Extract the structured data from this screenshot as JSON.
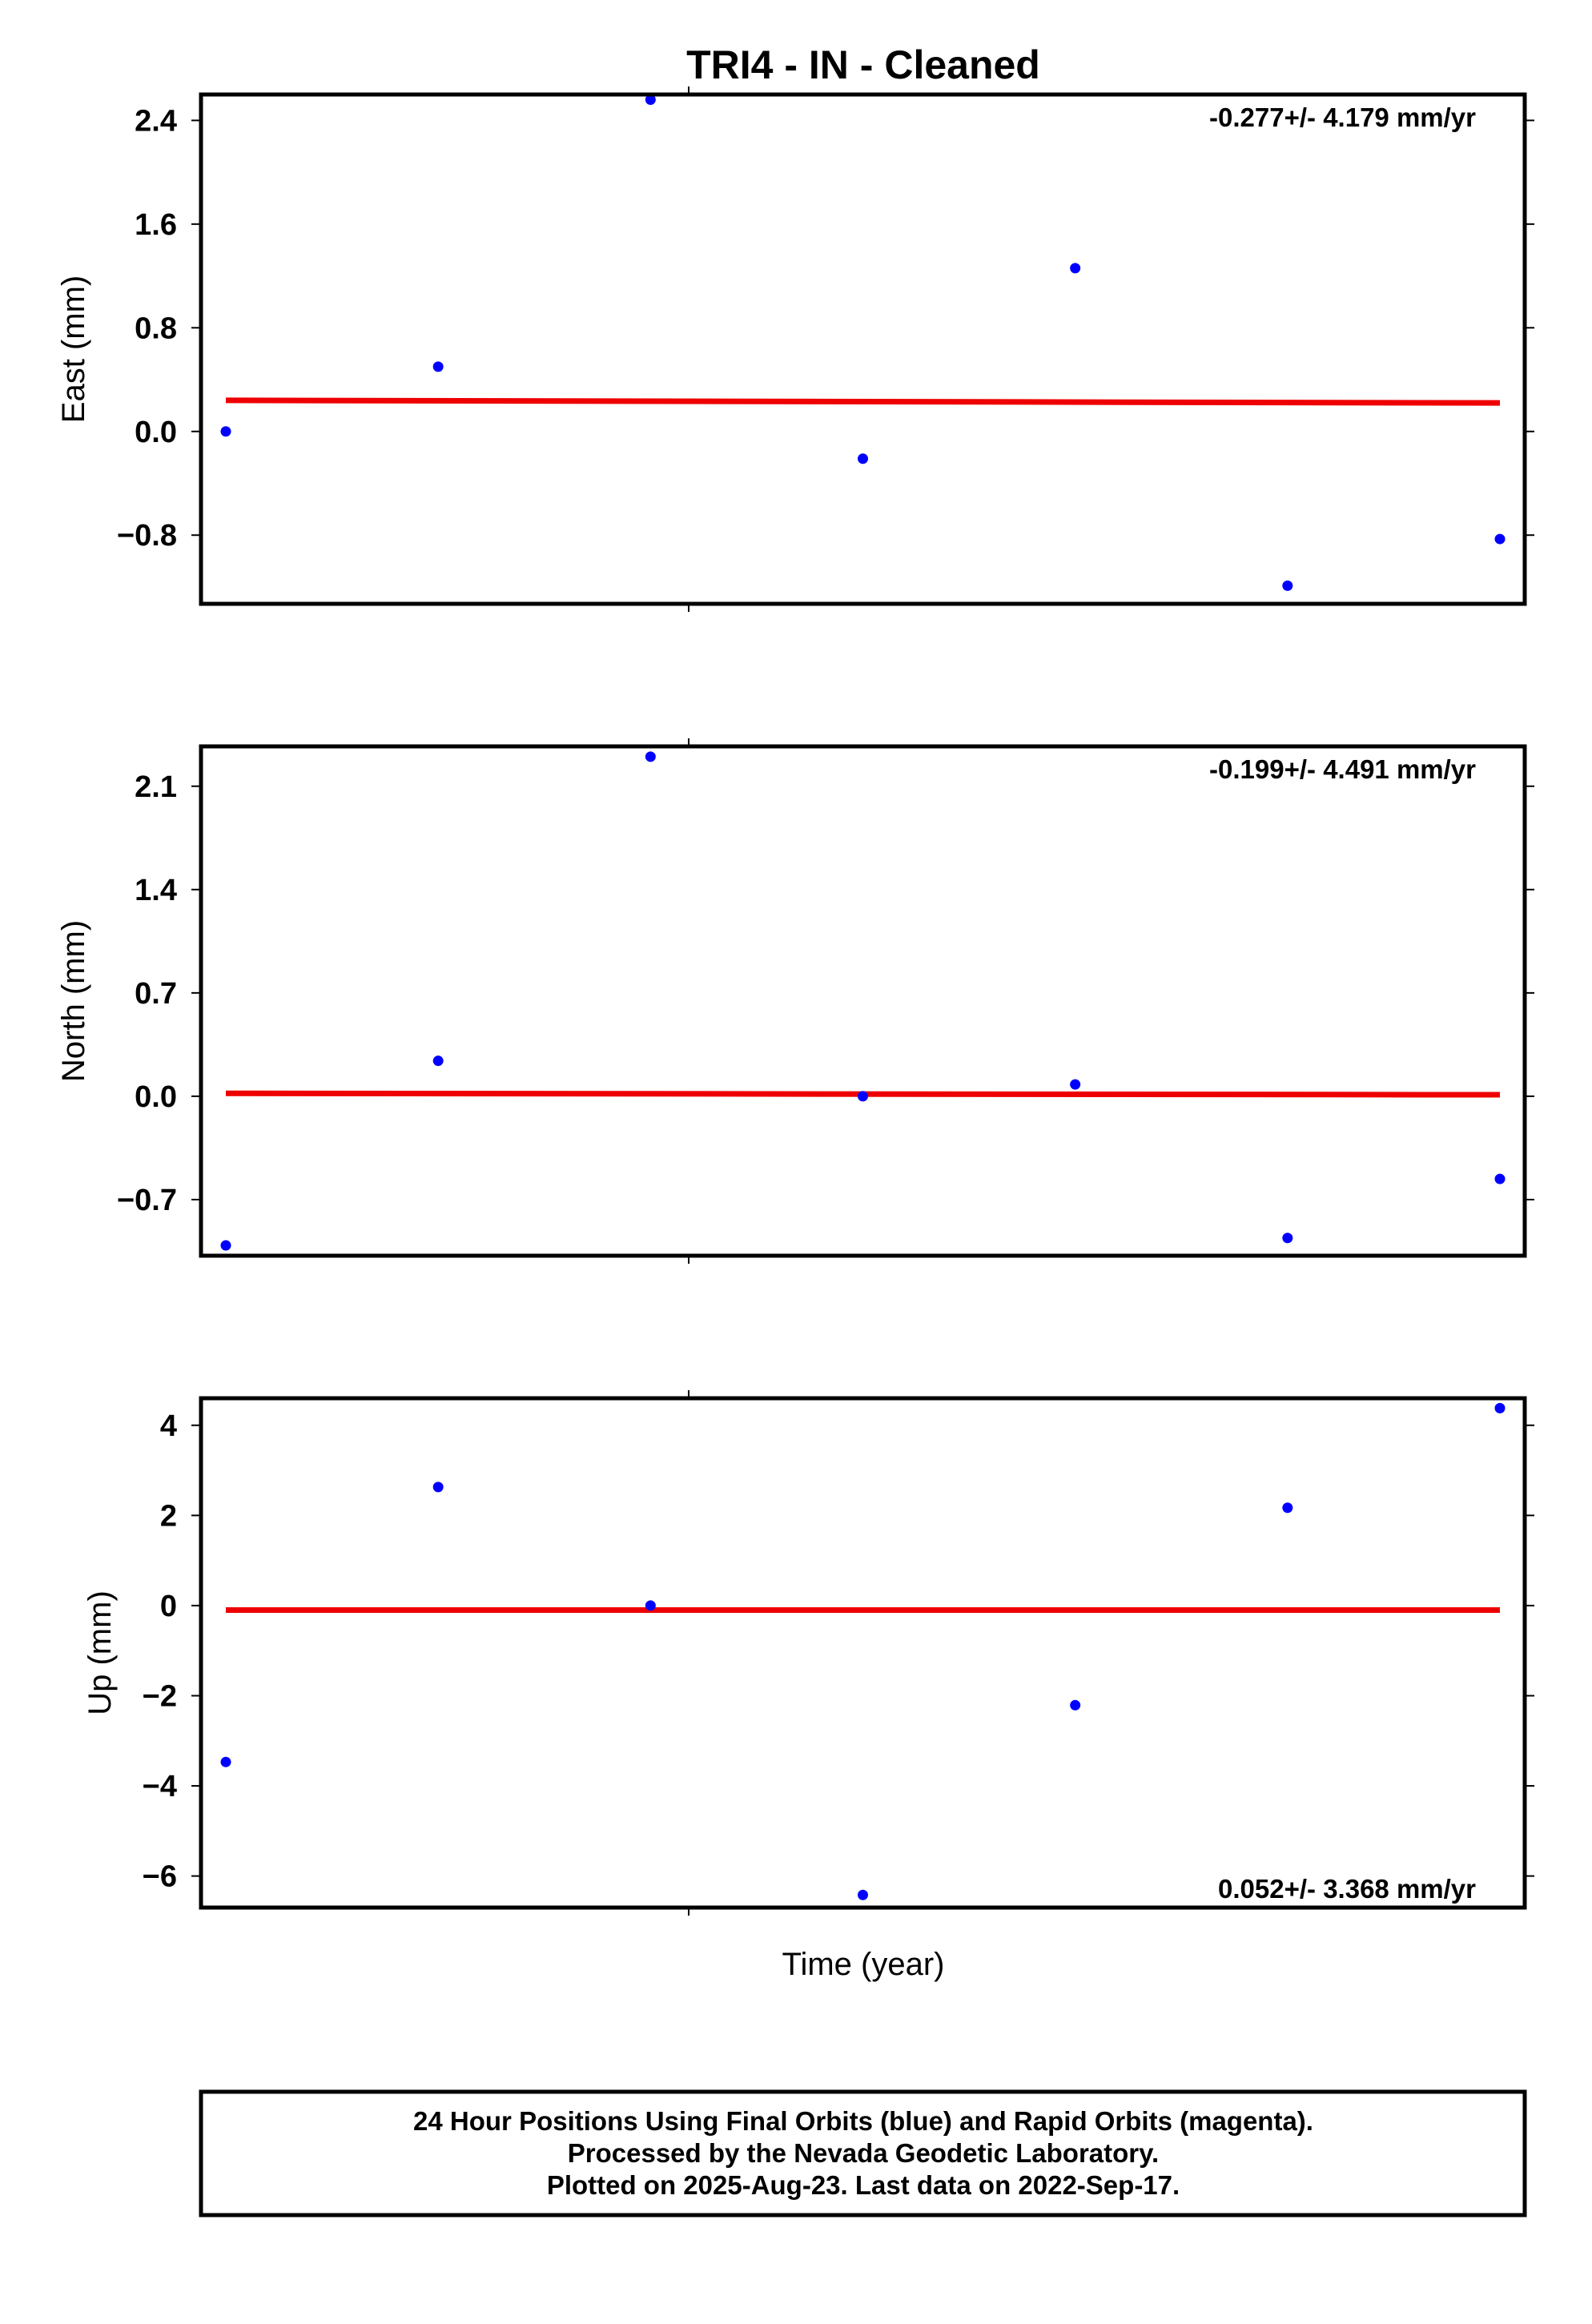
{
  "chart_data": {
    "title": "TRI4  - IN - Cleaned",
    "type": "scatter",
    "xlabel": "Time (year)",
    "panels": [
      {
        "ylabel": "East (mm)",
        "ylim": [
          -1.33,
          2.6
        ],
        "yticks": [
          2.4,
          1.6,
          0.8,
          0.0,
          -0.8
        ],
        "ytick_labels": [
          "2.4",
          "1.6",
          "0.8",
          "0.0",
          "−0.8"
        ],
        "rate": "-0.277+/- 4.179 mm/yr",
        "rate_position": "top-right",
        "points": [
          0.0,
          0.5,
          2.56,
          -0.21,
          1.26,
          -1.19,
          -0.83
        ],
        "trend": [
          0.24,
          0.22
        ]
      },
      {
        "ylabel": "North (mm)",
        "ylim": [
          -1.08,
          2.37
        ],
        "yticks": [
          2.1,
          1.4,
          0.7,
          0.0,
          -0.7
        ],
        "ytick_labels": [
          "2.1",
          "1.4",
          "0.7",
          "0.0",
          "−0.7"
        ],
        "rate": "-0.199+/- 4.491 mm/yr",
        "rate_position": "top-right",
        "points": [
          -1.01,
          0.24,
          2.3,
          0.0,
          0.08,
          -0.96,
          -0.56
        ],
        "trend": [
          0.02,
          0.01
        ]
      },
      {
        "ylabel": "Up (mm)",
        "ylim": [
          -6.7,
          4.6
        ],
        "yticks": [
          4,
          2,
          0,
          -2,
          -4,
          -6
        ],
        "ytick_labels": [
          "4",
          "2",
          "0",
          "−2",
          "−4",
          "−6"
        ],
        "rate": "0.052+/- 3.368 mm/yr",
        "rate_position": "bottom-right",
        "points": [
          -3.47,
          2.63,
          0.0,
          -6.42,
          -2.21,
          2.17,
          4.38
        ],
        "trend": [
          -0.1,
          -0.1
        ]
      }
    ],
    "footer": [
      "24 Hour Positions Using Final Orbits (blue) and Rapid Orbits (magenta).",
      "Processed by the Nevada Geodetic Laboratory.",
      "Plotted on 2025-Aug-23. Last data on 2022-Sep-17."
    ],
    "colors": {
      "points": "#0000ff",
      "trend": "#ee0000",
      "frame": "#000000"
    }
  }
}
